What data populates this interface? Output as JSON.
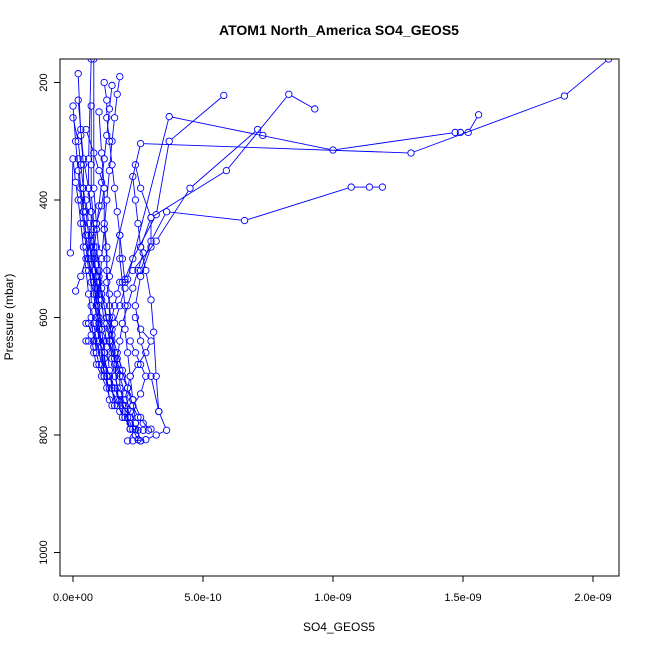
{
  "chart_data": {
    "type": "line",
    "title": "ATOM1 North_America SO4_GEOS5",
    "xlabel": "SO4_GEOS5",
    "ylabel": "Pressure (mbar)",
    "xlim": [
      -5e-11,
      2.1e-09
    ],
    "ylim": [
      1040,
      160
    ],
    "y_reversed": true,
    "grid": false,
    "legend": "none",
    "x_ticks": [
      0,
      5e-10,
      1e-09,
      1.5e-09,
      2e-09
    ],
    "x_tick_labels": [
      "0.0e+00",
      "5.0e-10",
      "1.0e-09",
      "1.5e-09",
      "2.0e-09"
    ],
    "y_ticks": [
      200,
      400,
      600,
      800,
      1000
    ],
    "y_tick_labels": [
      "200",
      "400",
      "600",
      "800",
      "1000"
    ],
    "series_color": "#0000ff",
    "marker": "open-circle",
    "series": [
      {
        "x": [
          2.3e-10,
          2.8e-10,
          3.2e-10,
          3.6e-10,
          3.3e-10,
          3e-10,
          2.6e-10,
          2.4e-10,
          2.6e-10,
          3e-10,
          3e-10,
          2.6e-10,
          2.4e-10
        ],
        "y": [
          810,
          808,
          800,
          792,
          760,
          700,
          640,
          580,
          530,
          480,
          430,
          380,
          340
        ]
      },
      {
        "x": [
          2.6e-10,
          2.4e-10,
          2.2e-10,
          2e-10,
          2e-10,
          1.8e-10,
          1.8e-10,
          1.6e-10,
          1.5e-10,
          1.4e-10,
          1.3e-10,
          1.3e-10,
          1.2e-10
        ],
        "y": [
          810,
          800,
          790,
          770,
          750,
          720,
          690,
          660,
          620,
          580,
          540,
          500,
          450
        ]
      },
      {
        "x": [
          2.4e-10,
          2.2e-10,
          1.9e-10,
          1.6e-10,
          1.4e-10,
          1.2e-10,
          1e-10,
          9e-11,
          8e-11,
          8e-11,
          7e-11,
          6e-11,
          5e-11
        ],
        "y": [
          790,
          770,
          750,
          720,
          700,
          670,
          640,
          600,
          560,
          520,
          480,
          440,
          400
        ]
      },
      {
        "x": [
          2.2e-10,
          2e-10,
          1.8e-10,
          1.6e-10,
          1.4e-10,
          1.2e-10,
          1.2e-10,
          1e-10,
          1e-10,
          9e-11,
          8e-11,
          8e-11
        ],
        "y": [
          780,
          760,
          740,
          720,
          700,
          690,
          660,
          640,
          600,
          560,
          520,
          490
        ]
      },
      {
        "x": [
          3e-10,
          2.7e-10,
          2.5e-10,
          2.3e-10,
          2.1e-10,
          1.9e-10,
          1.7e-10,
          1.5e-10,
          1.3e-10,
          1.1e-10,
          1e-10,
          9e-11
        ],
        "y": [
          790,
          780,
          770,
          750,
          720,
          690,
          660,
          630,
          600,
          560,
          520,
          480
        ]
      },
      {
        "x": [
          2.4e-10,
          2.2e-10,
          2e-10,
          1.8e-10,
          1.6e-10,
          1.4e-10,
          1.3e-10,
          1.2e-10,
          1.1e-10,
          1e-10
        ],
        "y": [
          780,
          760,
          730,
          700,
          670,
          640,
          610,
          580,
          550,
          520
        ]
      },
      {
        "x": [
          1e-10,
          9e-11,
          8e-11,
          6e-11,
          5e-11,
          4e-11,
          3e-11,
          2e-11,
          1e-11,
          0.0
        ],
        "y": [
          640,
          600,
          560,
          520,
          480,
          440,
          400,
          350,
          300,
          240
        ]
      },
      {
        "x": [
          1.2e-10,
          1.1e-10,
          1e-10,
          9e-11,
          8e-11,
          6e-11,
          5e-11,
          4e-11,
          3e-11,
          2e-11
        ],
        "y": [
          700,
          660,
          620,
          580,
          540,
          500,
          460,
          420,
          380,
          330
        ]
      },
      {
        "x": [
          9e-11,
          8e-11,
          7e-11,
          7e-11,
          6e-11,
          5e-11,
          4e-11,
          4e-11,
          3e-11,
          2e-11,
          0.0
        ],
        "y": [
          660,
          620,
          580,
          540,
          500,
          460,
          420,
          380,
          340,
          300,
          260
        ]
      },
      {
        "x": [
          8e-11,
          7e-11,
          6e-11,
          5e-11,
          4e-11,
          3e-11,
          2e-11,
          1e-11,
          0.0,
          -1e-11
        ],
        "y": [
          640,
          600,
          560,
          520,
          480,
          440,
          400,
          370,
          330,
          490
        ]
      },
      {
        "x": [
          1e-10,
          9e-11,
          8e-11,
          7e-11,
          6e-11,
          5e-11,
          4e-11,
          4e-11,
          3e-11,
          2e-11
        ],
        "y": [
          620,
          580,
          540,
          500,
          460,
          420,
          380,
          340,
          290,
          185
        ]
      },
      {
        "x": [
          1.4e-10,
          1.3e-10,
          1.2e-10,
          1.1e-10,
          1e-10,
          9e-11,
          8e-11,
          7e-11,
          7e-11,
          6e-11,
          6e-11,
          7e-11
        ],
        "y": [
          740,
          700,
          660,
          620,
          580,
          540,
          500,
          460,
          420,
          380,
          330,
          160
        ]
      },
      {
        "x": [
          1.6e-10,
          1.5e-10,
          1.4e-10,
          1.3e-10,
          1.2e-10,
          1.1e-10,
          1e-10,
          1e-10,
          9e-11,
          8e-11,
          8e-11
        ],
        "y": [
          750,
          720,
          690,
          650,
          610,
          570,
          530,
          490,
          440,
          380,
          160
        ]
      },
      {
        "x": [
          1.2e-10,
          1.1e-10,
          1e-10,
          1e-10,
          9e-11,
          8e-11,
          8e-11,
          7e-11,
          7e-11,
          7e-11
        ],
        "y": [
          690,
          650,
          610,
          570,
          530,
          490,
          440,
          390,
          340,
          240
        ]
      },
      {
        "x": [
          1.8e-10,
          1.7e-10,
          1.6e-10,
          1.5e-10,
          1.4e-10,
          1.4e-10,
          1.3e-10,
          1.3e-10,
          1.2e-10,
          1.2e-10,
          1.1e-10,
          1e-10
        ],
        "y": [
          760,
          720,
          680,
          640,
          600,
          560,
          520,
          480,
          440,
          380,
          320,
          250
        ]
      },
      {
        "x": [
          5e-11,
          6e-11,
          8e-11,
          1e-10,
          1.2e-10,
          1.4e-10,
          1.4e-10,
          1.5e-10,
          1.6e-10,
          1.7e-10,
          1.8e-10
        ],
        "y": [
          640,
          640,
          640,
          640,
          640,
          640,
          620,
          600,
          580,
          560,
          540
        ]
      },
      {
        "x": [
          1.2e-10,
          1.3e-10,
          1.3e-10,
          1.4e-10,
          1.5e-10,
          1.6e-10,
          1.7e-10,
          1.8e-10,
          1.9e-10,
          2e-10
        ],
        "y": [
          200,
          230,
          260,
          300,
          340,
          380,
          420,
          460,
          500,
          540
        ]
      },
      {
        "x": [
          1.5e-10,
          1.4e-10,
          1.3e-10,
          1.2e-10,
          1.1e-10,
          1e-10,
          9e-11,
          8e-11
        ],
        "y": [
          205,
          245,
          290,
          330,
          370,
          410,
          450,
          490
        ]
      },
      {
        "x": [
          1.8e-10,
          1.7e-10,
          1.6e-10,
          1.5e-10,
          1.4e-10,
          1.3e-10,
          1.2e-10,
          1.1e-10,
          1e-10
        ],
        "y": [
          190,
          220,
          260,
          300,
          350,
          400,
          450,
          500,
          560
        ]
      },
      {
        "x": [
          2.6e-10,
          2.4e-10,
          2.3e-10,
          2.2e-10,
          2.1e-10,
          2e-10,
          2e-10,
          1.9e-10,
          1.8e-10,
          1.8e-10
        ],
        "y": [
          810,
          780,
          740,
          700,
          660,
          620,
          580,
          540,
          500,
          460
        ]
      },
      {
        "x": [
          3.3e-10,
          3.2e-10,
          3.1e-10,
          3e-10,
          2.8e-10,
          2.6e-10,
          2.5e-10,
          2.4e-10,
          2.3e-10
        ],
        "y": [
          760,
          700,
          625,
          570,
          520,
          480,
          440,
          400,
          360
        ]
      },
      {
        "x": [
          2e-10,
          2.3e-10,
          3.2e-10,
          3.7e-10,
          5.8e-10
        ],
        "y": [
          535,
          500,
          425,
          300,
          222
        ]
      },
      {
        "x": [
          2.6e-10,
          3e-10,
          5.9e-10,
          8.3e-10,
          9.3e-10
        ],
        "y": [
          480,
          430,
          350,
          220,
          245
        ]
      },
      {
        "x": [
          2.3e-10,
          3.2e-10,
          4.5e-10,
          7.1e-10,
          7.3e-10
        ],
        "y": [
          520,
          470,
          380,
          280,
          290
        ]
      },
      {
        "x": [
          2.6e-10,
          3e-10,
          3.6e-10,
          6.6e-10,
          1.07e-09,
          1.14e-09,
          1.19e-09
        ],
        "y": [
          520,
          470,
          420,
          435,
          378,
          378,
          378
        ]
      },
      {
        "x": [
          2.1e-10,
          3.7e-10,
          1e-09,
          1.47e-09,
          1.49e-09,
          1.52e-09,
          1.56e-09
        ],
        "y": [
          535,
          258,
          315,
          285,
          285,
          285,
          255
        ]
      },
      {
        "x": [
          1.4e-10,
          2.6e-10,
          1.3e-09,
          1.89e-09,
          2.06e-09
        ],
        "y": [
          530,
          304,
          320,
          223,
          160
        ]
      },
      {
        "x": [
          2.7e-10,
          2.5e-10,
          2.2e-10,
          2e-10,
          1.7e-10,
          1.4e-10,
          1.1e-10,
          9e-11,
          8e-11
        ],
        "y": [
          792,
          792,
          790,
          770,
          750,
          710,
          680,
          640,
          610
        ]
      },
      {
        "x": [
          2.9e-10,
          2.6e-10,
          2.3e-10,
          2.1e-10,
          1.9e-10,
          1.7e-10,
          1.5e-10,
          1.3e-10,
          1.1e-10,
          1e-10
        ],
        "y": [
          792,
          770,
          740,
          720,
          700,
          680,
          660,
          640,
          620,
          600
        ]
      },
      {
        "x": [
          2.1e-10,
          2.4e-10,
          2.2e-10,
          2e-10,
          2.2e-10,
          2.5e-10,
          2.8e-10,
          3e-10,
          2.6e-10,
          2.4e-10
        ],
        "y": [
          810,
          790,
          770,
          740,
          700,
          680,
          660,
          640,
          620,
          600
        ]
      },
      {
        "x": [
          2.5e-10,
          2.3e-10,
          2.1e-10,
          2.3e-10,
          2.6e-10,
          2.8e-10,
          2.6e-10,
          2.4e-10,
          2.2e-10
        ],
        "y": [
          808,
          790,
          770,
          750,
          730,
          700,
          680,
          660,
          640
        ]
      },
      {
        "x": [
          2.2e-10,
          2e-10,
          1.8e-10,
          1.6e-10,
          1.5e-10,
          1.4e-10,
          1.6e-10,
          1.8e-10,
          2e-10
        ],
        "y": [
          790,
          760,
          730,
          700,
          670,
          640,
          610,
          580,
          550
        ]
      },
      {
        "x": [
          1.5e-10,
          1.3e-10,
          1.1e-10,
          9e-11,
          8e-11,
          7e-11,
          6e-11,
          5e-11
        ],
        "y": [
          750,
          720,
          700,
          680,
          660,
          630,
          610,
          610
        ]
      },
      {
        "x": [
          1.9e-10,
          1.7e-10,
          1.4e-10,
          1.2e-10,
          1e-10,
          9e-11,
          8e-11
        ],
        "y": [
          770,
          740,
          720,
          700,
          680,
          660,
          650
        ]
      },
      {
        "x": [
          1e-11,
          3e-11,
          5e-11,
          7e-11,
          9e-11,
          1.1e-10,
          1.2e-10,
          1e-10,
          8e-11,
          5e-11
        ],
        "y": [
          555,
          530,
          500,
          470,
          440,
          410,
          380,
          350,
          320,
          280
        ]
      },
      {
        "x": [
          9e-11,
          1e-10,
          9e-11,
          8e-11,
          8e-11,
          7e-11,
          6e-11,
          4e-11,
          3e-11,
          2e-11
        ],
        "y": [
          580,
          540,
          510,
          480,
          450,
          420,
          380,
          330,
          280,
          230
        ]
      },
      {
        "x": [
          1.6e-10,
          1.7e-10,
          1.8e-10,
          1.9e-10,
          2.1e-10,
          2.3e-10,
          2.5e-10,
          2.7e-10
        ],
        "y": [
          700,
          670,
          640,
          610,
          580,
          550,
          520,
          490
        ]
      }
    ]
  }
}
